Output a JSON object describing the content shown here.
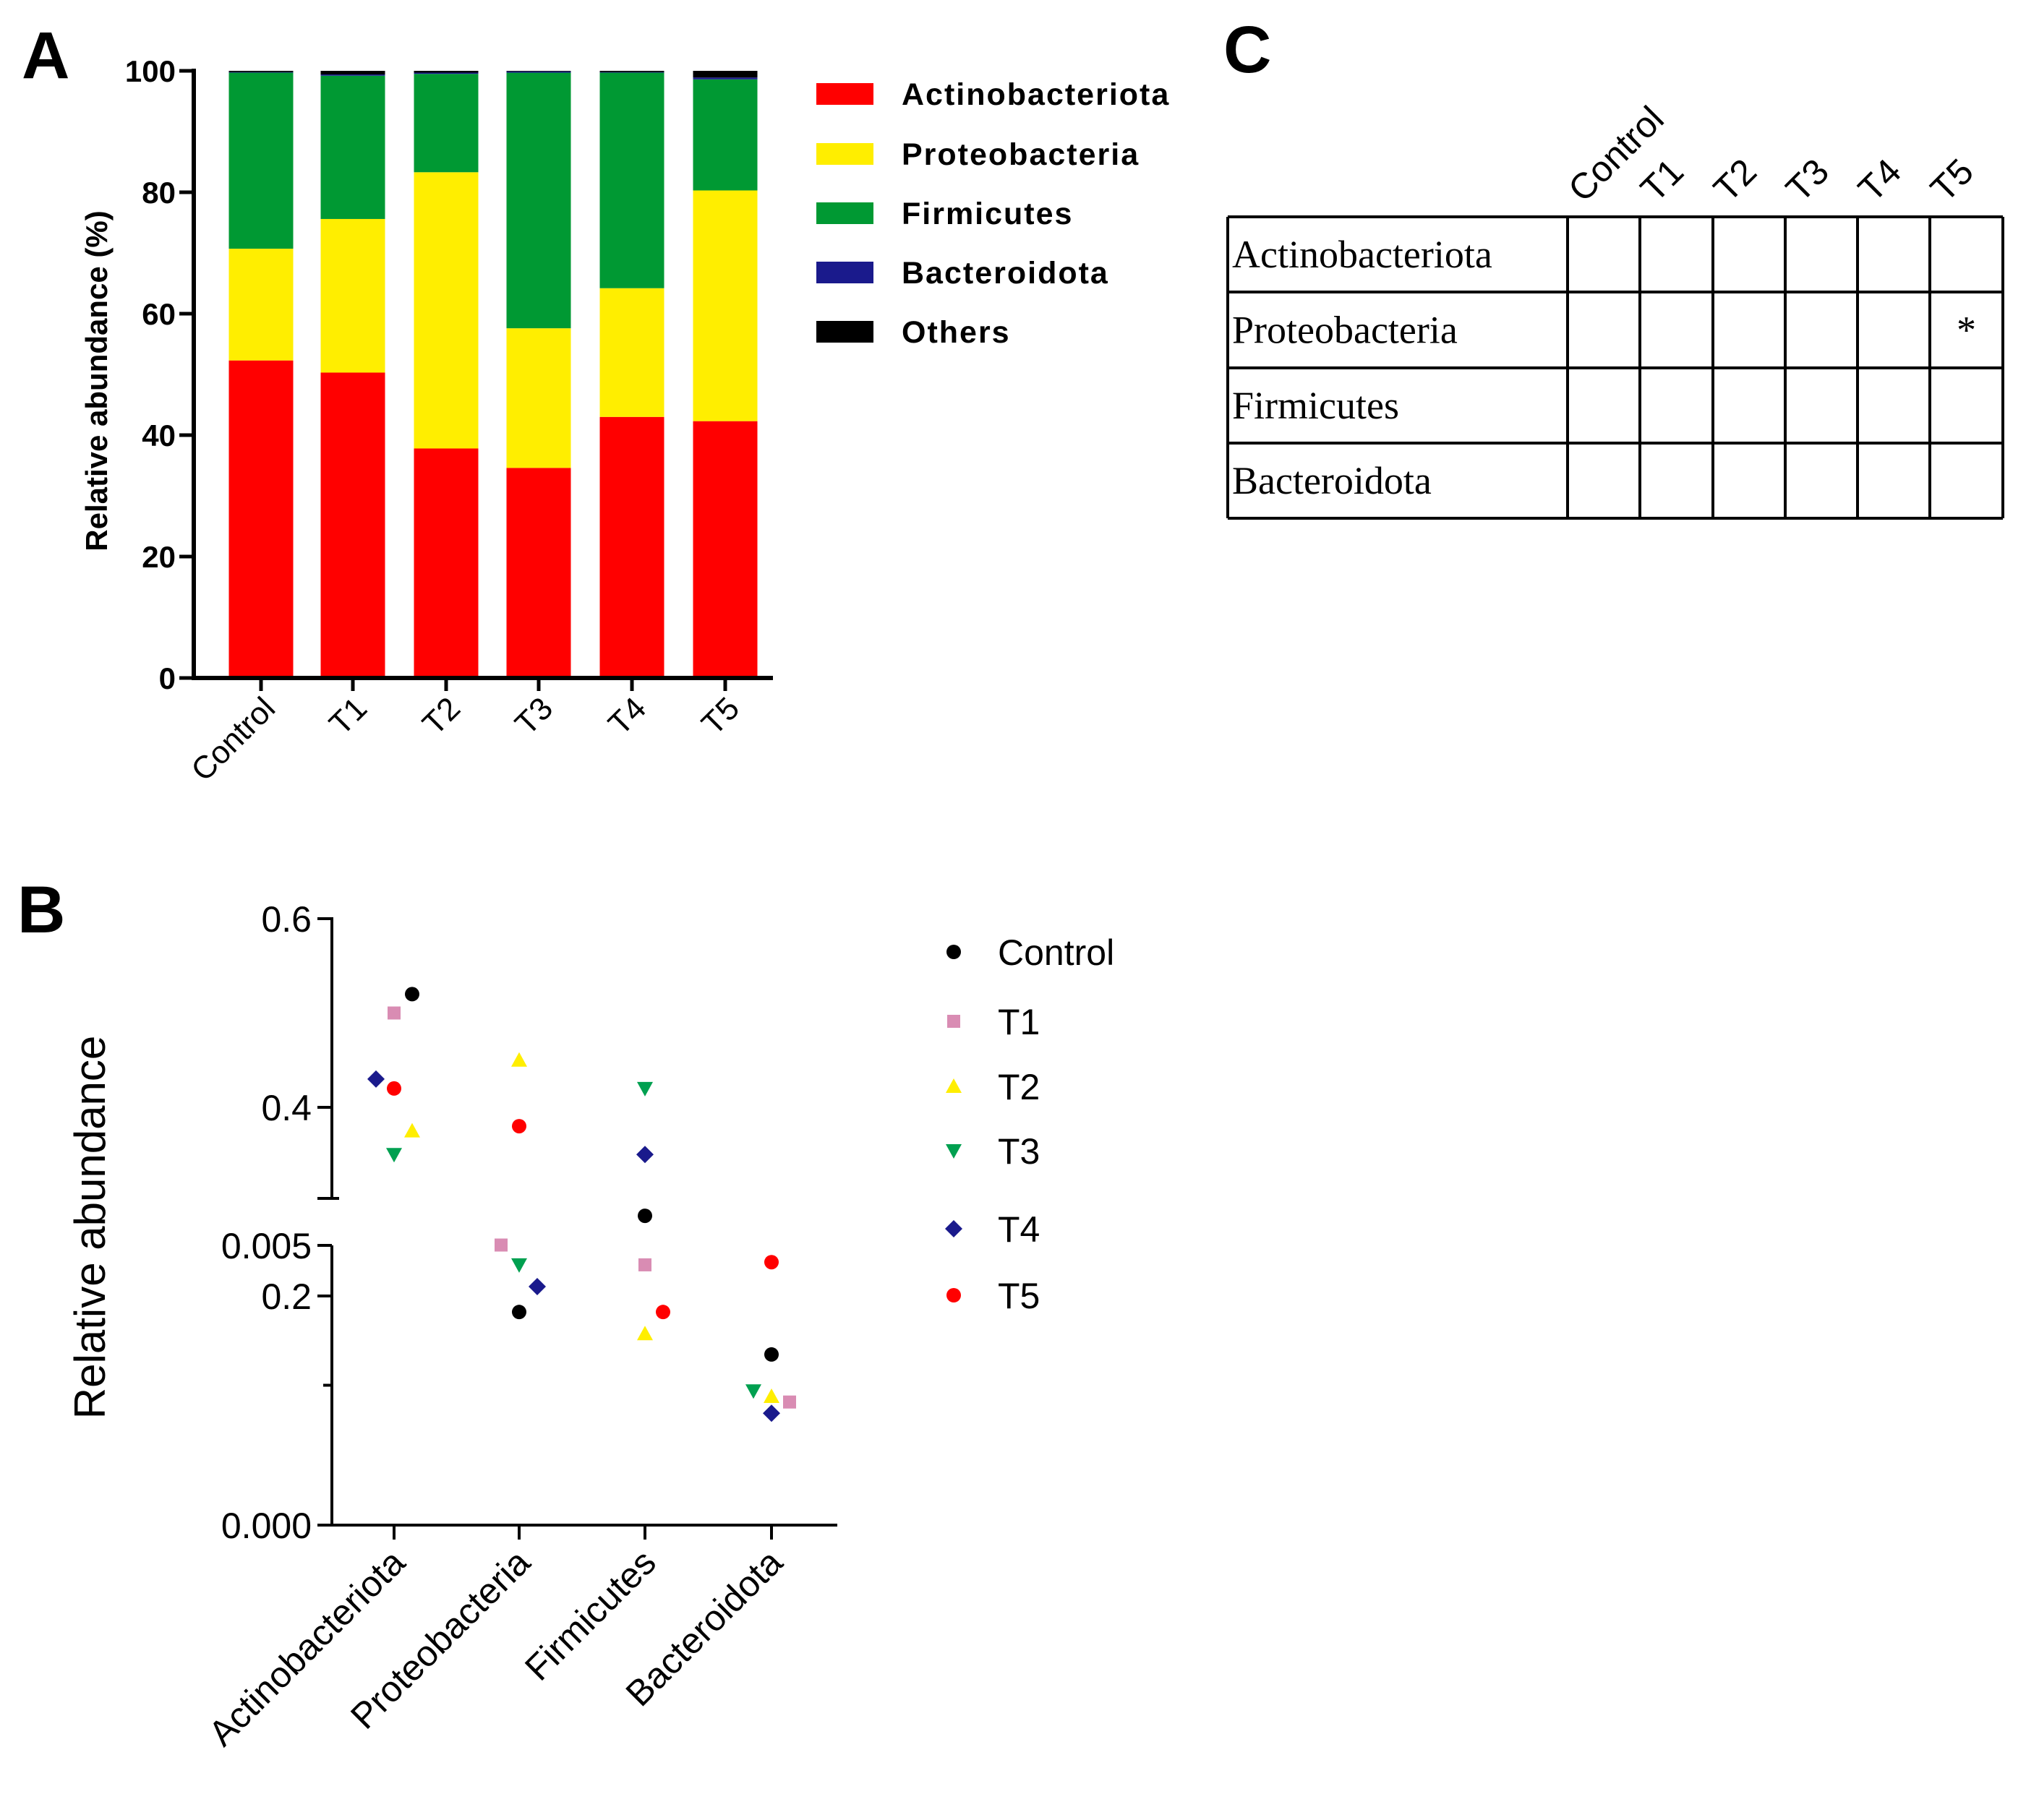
{
  "chart_data": [
    {
      "panel": "A",
      "type": "bar",
      "stacked": true,
      "categories": [
        "Control",
        "T1",
        "T2",
        "T3",
        "T4",
        "T5"
      ],
      "series": [
        {
          "name": "Actinobacteriota",
          "color": "#ff0000",
          "values": [
            52.3,
            50.3,
            37.8,
            34.6,
            43.0,
            42.3
          ]
        },
        {
          "name": "Proteobacteria",
          "color": "#ffee00",
          "values": [
            18.4,
            25.3,
            45.5,
            23.0,
            21.2,
            38.0
          ]
        },
        {
          "name": "Firmicutes",
          "color": "#009933",
          "values": [
            29.0,
            23.6,
            16.2,
            42.1,
            35.5,
            18.3
          ]
        },
        {
          "name": "Bacteroidota",
          "color": "#1a1a8c",
          "values": [
            0.1,
            0.2,
            0.2,
            0.2,
            0.1,
            0.3
          ]
        },
        {
          "name": "Others",
          "color": "#000000",
          "values": [
            0.2,
            0.6,
            0.3,
            0.1,
            0.2,
            1.1
          ]
        }
      ],
      "ylabel": "Relative abundance (%)",
      "xlabel": "",
      "ylim": [
        0,
        100
      ],
      "yticks": [
        "0",
        "20",
        "40",
        "60",
        "80",
        "100"
      ],
      "legend": "right"
    },
    {
      "panel": "B",
      "type": "scatter",
      "categories": [
        "Actinobacteriota",
        "Proteobacteria",
        "Firmicutes",
        "Bacteroidota"
      ],
      "series": [
        {
          "name": "Control",
          "marker": "circle",
          "color": "#000000",
          "values": [
            0.52,
            0.183,
            0.285,
            0.00305
          ]
        },
        {
          "name": "T1",
          "marker": "square",
          "color": "#d98cb3",
          "values": [
            0.5,
            0.254,
            0.233,
            0.0022
          ]
        },
        {
          "name": "T2",
          "marker": "triangle-up",
          "color": "#ffee00",
          "values": [
            0.375,
            0.45,
            0.16,
            0.0023
          ]
        },
        {
          "name": "T3",
          "marker": "triangle-down",
          "color": "#00a050",
          "values": [
            0.35,
            0.233,
            0.42,
            0.0024
          ]
        },
        {
          "name": "T4",
          "marker": "diamond",
          "color": "#1a1a8c",
          "values": [
            0.43,
            0.21,
            0.35,
            0.002
          ]
        },
        {
          "name": "T5",
          "marker": "circle",
          "color": "#ff0000",
          "values": [
            0.42,
            0.38,
            0.183,
            0.0047
          ]
        }
      ],
      "ylabel": "Relative abundance",
      "xlabel": "",
      "y_axis_break": true,
      "ylim_upper": [
        0,
        0.6
      ],
      "ylim_lower": [
        0,
        0.005
      ],
      "yticks_upper": [
        "0.2",
        "0.4",
        "0.6"
      ],
      "yticks_lower": [
        "0.000",
        "0.005"
      ],
      "legend": "right"
    },
    {
      "panel": "C",
      "type": "table",
      "columns": [
        "Control",
        "T1",
        "T2",
        "T3",
        "T4",
        "T5"
      ],
      "rows": [
        {
          "label": "Actinobacteriota",
          "cells": [
            "",
            "",
            "",
            "",
            "",
            ""
          ]
        },
        {
          "label": "Proteobacteria",
          "cells": [
            "",
            "",
            "",
            "",
            "",
            "*"
          ]
        },
        {
          "label": "Firmicutes",
          "cells": [
            "",
            "",
            "",
            "",
            "",
            ""
          ]
        },
        {
          "label": "Bacteroidota",
          "cells": [
            "",
            "",
            "",
            "",
            "",
            ""
          ]
        }
      ]
    }
  ],
  "panel_letters": [
    "A",
    "B",
    "C"
  ]
}
